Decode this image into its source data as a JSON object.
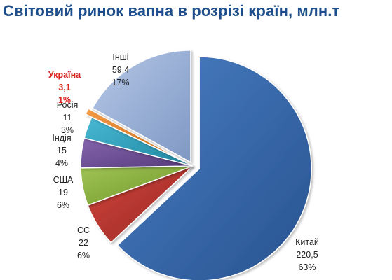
{
  "chart_data": {
    "type": "pie",
    "title": "Світовий ринок вапна в розрізі країн, млн.т",
    "exploded": [
      "Китай",
      "Україна",
      "Інші"
    ],
    "series": [
      {
        "name": "Китай",
        "value": "220,5",
        "pct": "63%",
        "color": "#3566a8"
      },
      {
        "name": "ЄС",
        "value": "22",
        "pct": "6%",
        "color": "#b8332c"
      },
      {
        "name": "США",
        "value": "19",
        "pct": "6%",
        "color": "#87ad3a"
      },
      {
        "name": "Індія",
        "value": "15",
        "pct": "4%",
        "color": "#6b4a94"
      },
      {
        "name": "Росія",
        "value": "11",
        "pct": "3%",
        "color": "#2fa0bb"
      },
      {
        "name": "Україна",
        "value": "3,1",
        "pct": "1%",
        "color": "#e6832a"
      },
      {
        "name": "Інші",
        "value": "59,4",
        "pct": "17%",
        "color": "#9db3d8"
      }
    ]
  }
}
